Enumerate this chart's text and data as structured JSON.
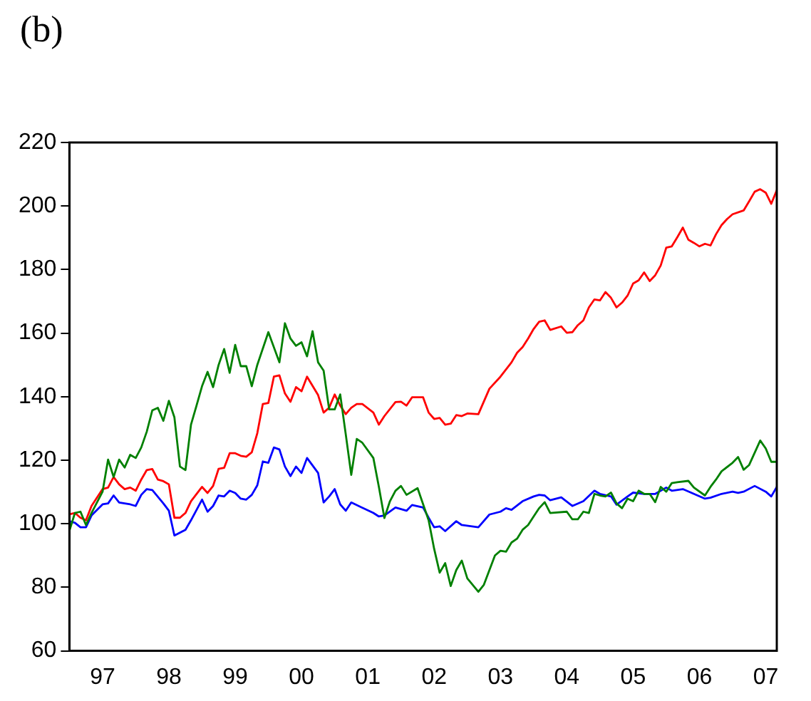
{
  "chart_data": {
    "type": "line",
    "title": "(b)",
    "xlim": [
      "1997-01",
      "2007-09"
    ],
    "xticks": [
      {
        "value": "1997-07",
        "label": "97"
      },
      {
        "value": "1998-07",
        "label": "98"
      },
      {
        "value": "1999-07",
        "label": "99"
      },
      {
        "value": "2000-07",
        "label": "00"
      },
      {
        "value": "2001-07",
        "label": "01"
      },
      {
        "value": "2002-07",
        "label": "02"
      },
      {
        "value": "2003-07",
        "label": "03"
      },
      {
        "value": "2004-07",
        "label": "04"
      },
      {
        "value": "2005-07",
        "label": "05"
      },
      {
        "value": "2006-07",
        "label": "06"
      },
      {
        "value": "2007-07",
        "label": "07"
      }
    ],
    "ylim": [
      60,
      220
    ],
    "yticks": [
      60,
      80,
      100,
      120,
      140,
      160,
      180,
      200,
      220
    ],
    "grid": false,
    "legend": false,
    "marker": "none",
    "line_style": "solid",
    "series": [
      {
        "color": "#008000",
        "x": [
          "1997-01",
          "1997-02",
          "1997-03",
          "1997-04",
          "1997-05",
          "1997-07",
          "1997-08",
          "1997-09",
          "1997-10",
          "1997-11",
          "1997-12",
          "1998-01",
          "1998-02",
          "1998-03",
          "1998-04",
          "1998-05",
          "1998-06",
          "1998-07",
          "1998-08",
          "1998-09",
          "1998-10",
          "1998-11",
          "1998-12",
          "1999-01",
          "1999-02",
          "1999-03",
          "1999-04",
          "1999-05",
          "1999-06",
          "1999-07",
          "1999-08",
          "1999-09",
          "1999-10",
          "1999-11",
          "2000-01",
          "2000-03",
          "2000-04",
          "2000-05",
          "2000-06",
          "2000-07",
          "2000-08",
          "2000-09",
          "2000-10",
          "2000-11",
          "2000-12",
          "2001-01",
          "2001-02",
          "2001-03",
          "2001-04",
          "2001-05",
          "2001-06",
          "2001-08",
          "2001-09",
          "2001-10",
          "2001-11",
          "2001-12",
          "2002-01",
          "2002-02",
          "2002-04",
          "2002-06",
          "2002-07",
          "2002-08",
          "2002-09",
          "2002-10",
          "2002-11",
          "2002-12",
          "2003-01",
          "2003-03",
          "2003-04",
          "2003-06",
          "2003-07",
          "2003-08",
          "2003-09",
          "2003-10",
          "2003-11",
          "2003-12",
          "2004-01",
          "2004-02",
          "2004-03",
          "2004-04",
          "2004-07",
          "2004-08",
          "2004-09",
          "2004-10",
          "2004-11",
          "2004-12",
          "2005-01",
          "2005-02",
          "2005-03",
          "2005-04",
          "2005-05",
          "2005-06",
          "2005-07",
          "2005-08",
          "2005-09",
          "2005-10",
          "2005-11",
          "2005-12",
          "2006-01",
          "2006-02",
          "2006-03",
          "2006-05",
          "2006-06",
          "2006-08",
          "2006-09",
          "2006-10",
          "2006-11",
          "2007-01",
          "2007-02",
          "2007-03",
          "2007-04",
          "2007-06",
          "2007-07",
          "2007-08",
          "2007-09"
        ],
        "values": [
          97.8,
          103.4,
          103.8,
          99.6,
          103.4,
          110.1,
          120.2,
          114.7,
          120.2,
          117.7,
          121.7,
          120.7,
          124.0,
          129.0,
          135.7,
          136.5,
          132.4,
          138.7,
          133.5,
          118.0,
          116.9,
          131.2,
          137.2,
          143.3,
          147.8,
          143.0,
          150.0,
          155.0,
          147.5,
          156.3,
          149.6,
          149.6,
          143.3,
          150.0,
          160.3,
          150.8,
          163.1,
          158.3,
          156.0,
          157.1,
          152.7,
          160.6,
          150.8,
          148.2,
          136.0,
          136.0,
          140.7,
          128.2,
          115.4,
          126.7,
          125.5,
          120.7,
          111.6,
          101.8,
          107.1,
          110.4,
          111.9,
          109.1,
          111.2,
          101.1,
          92.1,
          84.6,
          87.6,
          80.4,
          85.4,
          88.4,
          82.8,
          78.6,
          80.8,
          90.0,
          91.5,
          91.2,
          94.1,
          95.3,
          98.1,
          99.6,
          102.3,
          104.9,
          106.8,
          103.4,
          103.8,
          101.4,
          101.4,
          103.8,
          103.4,
          109.4,
          108.9,
          108.6,
          109.8,
          106.4,
          104.9,
          107.9,
          107.1,
          110.4,
          109.4,
          109.4,
          106.8,
          111.6,
          110.1,
          112.8,
          113.1,
          113.5,
          111.4,
          108.9,
          111.6,
          113.9,
          116.5,
          119.2,
          121.0,
          117.0,
          118.5,
          126.2,
          123.7,
          119.5,
          119.5
        ]
      },
      {
        "color": "#ff0000",
        "x": [
          "1997-01",
          "1997-02",
          "1997-03",
          "1997-04",
          "1997-05",
          "1997-07",
          "1997-08",
          "1997-09",
          "1997-10",
          "1997-11",
          "1997-12",
          "1998-01",
          "1998-02",
          "1998-03",
          "1998-04",
          "1998-05",
          "1998-06",
          "1998-07",
          "1998-08",
          "1998-09",
          "1998-10",
          "1998-11",
          "1999-01",
          "1999-02",
          "1999-03",
          "1999-04",
          "1999-05",
          "1999-06",
          "1999-07",
          "1999-08",
          "1999-09",
          "1999-10",
          "1999-11",
          "1999-12",
          "2000-01",
          "2000-02",
          "2000-03",
          "2000-04",
          "2000-05",
          "2000-06",
          "2000-07",
          "2000-08",
          "2000-10",
          "2000-11",
          "2000-12",
          "2001-01",
          "2001-02",
          "2001-03",
          "2001-04",
          "2001-05",
          "2001-06",
          "2001-08",
          "2001-09",
          "2001-10",
          "2001-12",
          "2002-01",
          "2002-02",
          "2002-03",
          "2002-05",
          "2002-06",
          "2002-07",
          "2002-08",
          "2002-09",
          "2002-10",
          "2002-11",
          "2002-12",
          "2003-01",
          "2003-03",
          "2003-05",
          "2003-07",
          "2003-09",
          "2003-10",
          "2003-11",
          "2003-12",
          "2004-01",
          "2004-02",
          "2004-03",
          "2004-04",
          "2004-06",
          "2004-07",
          "2004-08",
          "2004-09",
          "2004-10",
          "2004-11",
          "2004-12",
          "2005-01",
          "2005-02",
          "2005-03",
          "2005-04",
          "2005-05",
          "2005-06",
          "2005-07",
          "2005-08",
          "2005-09",
          "2005-10",
          "2005-11",
          "2005-12",
          "2006-01",
          "2006-02",
          "2006-03",
          "2006-04",
          "2006-05",
          "2006-06",
          "2006-07",
          "2006-08",
          "2006-09",
          "2006-10",
          "2006-11",
          "2006-12",
          "2007-01",
          "2007-03",
          "2007-04",
          "2007-05",
          "2007-06",
          "2007-07",
          "2007-08",
          "2007-09"
        ],
        "values": [
          103.0,
          103.4,
          101.9,
          101.1,
          105.6,
          110.9,
          111.4,
          114.7,
          112.4,
          110.9,
          111.4,
          110.4,
          113.9,
          116.9,
          117.2,
          113.9,
          113.4,
          112.4,
          101.9,
          101.9,
          103.4,
          107.1,
          111.6,
          109.7,
          111.9,
          117.3,
          117.6,
          122.2,
          122.2,
          121.4,
          121.1,
          122.5,
          128.5,
          137.7,
          138.0,
          146.3,
          146.7,
          141.0,
          138.4,
          143.0,
          141.7,
          146.3,
          140.5,
          135.0,
          136.5,
          140.7,
          137.2,
          134.5,
          136.5,
          137.7,
          137.7,
          135.0,
          131.2,
          133.9,
          138.3,
          138.4,
          137.2,
          139.8,
          139.8,
          135.0,
          133.0,
          133.3,
          131.2,
          131.5,
          134.2,
          133.9,
          134.7,
          134.5,
          142.5,
          146.3,
          150.8,
          153.8,
          155.6,
          158.3,
          161.3,
          163.6,
          164.0,
          161.0,
          162.1,
          160.1,
          160.3,
          162.5,
          164.0,
          168.1,
          170.6,
          170.3,
          172.9,
          171.1,
          168.1,
          169.6,
          171.8,
          175.6,
          176.6,
          179.1,
          176.4,
          178.2,
          181.3,
          186.9,
          187.3,
          190.2,
          193.2,
          189.4,
          188.4,
          187.3,
          188.1,
          187.6,
          191.1,
          194.0,
          195.9,
          197.4,
          198.6,
          201.5,
          204.5,
          205.3,
          204.2,
          200.7,
          205.0
        ]
      },
      {
        "color": "#0000ff",
        "x": [
          "1997-01",
          "1997-02",
          "1997-03",
          "1997-04",
          "1997-05",
          "1997-07",
          "1997-08",
          "1997-09",
          "1997-10",
          "1997-12",
          "1998-01",
          "1998-02",
          "1998-03",
          "1998-04",
          "1998-06",
          "1998-07",
          "1998-08",
          "1998-10",
          "1998-11",
          "1999-01",
          "1999-02",
          "1999-03",
          "1999-04",
          "1999-05",
          "1999-06",
          "1999-07",
          "1999-08",
          "1999-09",
          "1999-10",
          "1999-11",
          "1999-12",
          "2000-01",
          "2000-02",
          "2000-03",
          "2000-04",
          "2000-05",
          "2000-06",
          "2000-07",
          "2000-08",
          "2000-10",
          "2000-11",
          "2000-12",
          "2001-01",
          "2001-02",
          "2001-03",
          "2001-04",
          "2001-08",
          "2001-09",
          "2001-10",
          "2001-12",
          "2002-02",
          "2002-03",
          "2002-05",
          "2002-06",
          "2002-07",
          "2002-08",
          "2002-09",
          "2002-11",
          "2002-12",
          "2003-03",
          "2003-05",
          "2003-07",
          "2003-08",
          "2003-09",
          "2003-11",
          "2004-01",
          "2004-02",
          "2004-03",
          "2004-04",
          "2004-06",
          "2004-08",
          "2004-10",
          "2004-12",
          "2005-01",
          "2005-03",
          "2005-04",
          "2005-06",
          "2005-07",
          "2005-09",
          "2005-11",
          "2006-01",
          "2006-02",
          "2006-04",
          "2006-06",
          "2006-08",
          "2006-09",
          "2006-11",
          "2007-01",
          "2007-02",
          "2007-03",
          "2007-05",
          "2007-07",
          "2007-08",
          "2007-09"
        ],
        "values": [
          100.8,
          100.3,
          98.9,
          98.9,
          102.6,
          106.1,
          106.4,
          108.9,
          106.7,
          106.1,
          105.6,
          109.1,
          110.9,
          110.6,
          106.4,
          104.1,
          96.3,
          98.1,
          101.1,
          107.6,
          103.8,
          105.6,
          108.9,
          108.6,
          110.4,
          109.7,
          107.9,
          107.6,
          109.1,
          112.1,
          119.6,
          119.2,
          124.0,
          123.4,
          118.0,
          115.0,
          118.0,
          116.0,
          120.7,
          116.0,
          106.7,
          108.6,
          110.9,
          106.1,
          104.1,
          106.7,
          103.4,
          102.3,
          102.6,
          105.1,
          104.1,
          105.9,
          105.1,
          101.9,
          98.9,
          99.2,
          97.7,
          100.8,
          99.6,
          98.9,
          102.9,
          103.8,
          104.9,
          104.4,
          107.1,
          108.6,
          109.1,
          108.9,
          107.4,
          108.3,
          105.6,
          107.1,
          110.4,
          109.4,
          108.6,
          106.0,
          108.6,
          109.8,
          109.4,
          109.4,
          111.4,
          110.4,
          110.9,
          109.4,
          107.9,
          108.2,
          109.4,
          110.1,
          109.7,
          110.1,
          111.9,
          110.1,
          108.6,
          111.6
        ]
      }
    ]
  }
}
